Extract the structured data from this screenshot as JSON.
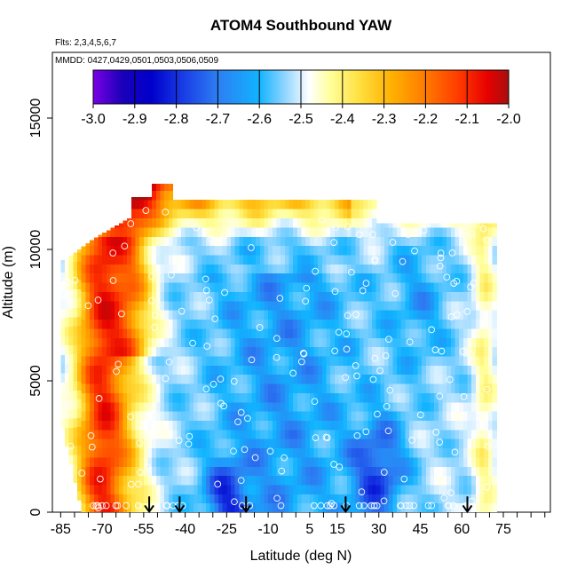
{
  "chart_data": {
    "type": "heatmap",
    "title": "ATOM4 Southbound YAW",
    "flights_label": "Flts: 2,3,4,5,6,7",
    "dates_label": "MMDD: 0427,0429,0501,0503,0506,0509",
    "xlabel": "Latitude (deg N)",
    "ylabel": "Altitude (m)",
    "xlim": [
      -88,
      92
    ],
    "ylim": [
      0,
      17500
    ],
    "x_ticks": [
      "-85",
      "-70",
      "-55",
      "-40",
      "-25",
      "-10",
      "5",
      "15",
      "30",
      "45",
      "60",
      "75"
    ],
    "x_tick_values": [
      -85,
      -70,
      -55,
      -40,
      -25,
      -10,
      5,
      15,
      30,
      45,
      60,
      75
    ],
    "y_ticks": [
      "0",
      "5000",
      "10000",
      "15000"
    ],
    "y_tick_values": [
      0,
      5000,
      10000,
      15000
    ],
    "colorbar": {
      "min": -3.0,
      "max": -2.0,
      "ticks": [
        "-3.0",
        "-2.9",
        "-2.8",
        "-2.7",
        "-2.6",
        "-2.5",
        "-2.4",
        "-2.3",
        "-2.2",
        "-2.1",
        "-2.0"
      ],
      "colors": [
        "#7a00e6",
        "#1a00b8",
        "#0000cc",
        "#1a3fe6",
        "#2d7ef2",
        "#11b4ff",
        "#8ed4ff",
        "#ffffff",
        "#ffff9c",
        "#ffe040",
        "#ffb000",
        "#ff7a00",
        "#ff3a00",
        "#e60000",
        "#a80f0f"
      ]
    },
    "profile_arrows_latitude": [
      -53,
      -42,
      -18,
      18,
      62
    ],
    "domain_edges": {
      "latitude": [
        -85,
        72
      ],
      "top_altitude_m": 12500
    }
  }
}
